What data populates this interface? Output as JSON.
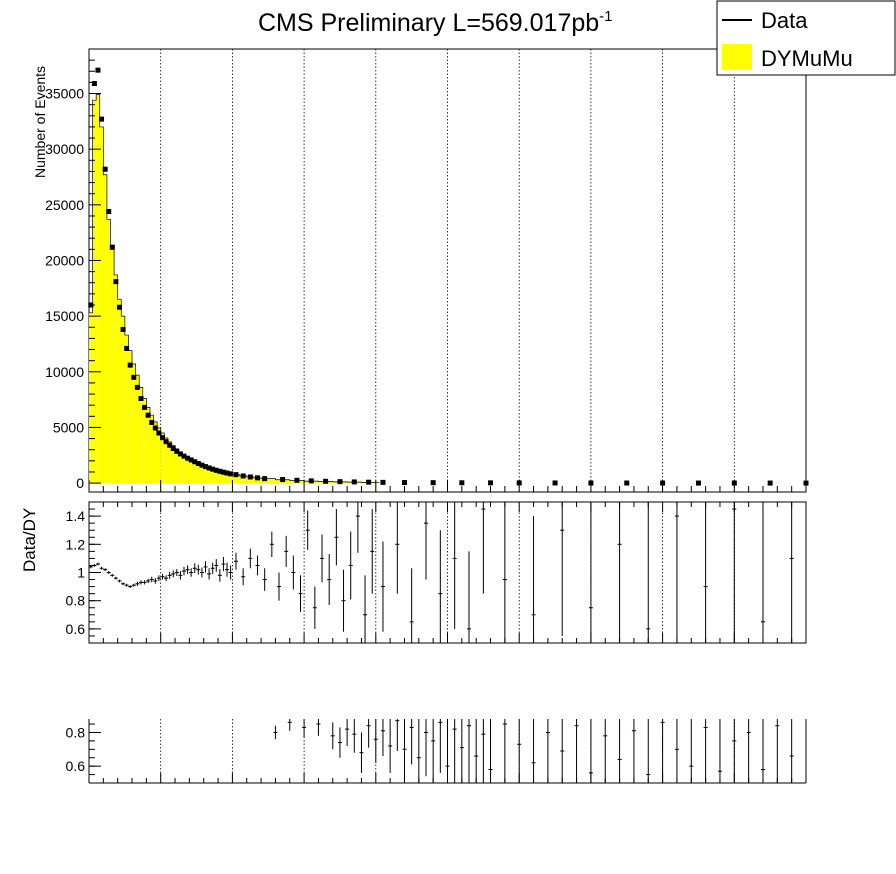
{
  "chart_data": [
    {
      "type": "bar",
      "panel": "main",
      "title": "CMS Preliminary L=569.017pb",
      "title_superscript": "-1",
      "ylabel": "Number of Events",
      "xlabel": "",
      "ylim": [
        -800,
        39000
      ],
      "xlim": [
        0,
        500
      ],
      "yticks": [
        0,
        5000,
        10000,
        15000,
        20000,
        25000,
        30000,
        35000
      ],
      "ytick_labels": [
        "0",
        "5000",
        "10000",
        "15000",
        "20000",
        "25000",
        "30000",
        "35000"
      ],
      "grid_x": true,
      "grid_y": false,
      "legend": {
        "position": "top-right",
        "entries": [
          {
            "label": "Data",
            "style": "line",
            "color": "#000000"
          },
          {
            "label": "DYMuMu",
            "style": "fill",
            "color": "#ffff00"
          }
        ]
      },
      "series": [
        {
          "name": "DYMuMu",
          "kind": "histogram",
          "color": "#ffff00",
          "bin_width": 2.5,
          "x": [
            0,
            2.5,
            5,
            7.5,
            10,
            12.5,
            15,
            17.5,
            20,
            22.5,
            25,
            27.5,
            30,
            32.5,
            35,
            37.5,
            40,
            42.5,
            45,
            47.5,
            50,
            52.5,
            55,
            57.5,
            60,
            62.5,
            65,
            67.5,
            70,
            72.5,
            75,
            77.5,
            80,
            82.5,
            85,
            87.5,
            90,
            92.5,
            95,
            97.5,
            100,
            105,
            110,
            115,
            120,
            130,
            140,
            150,
            160,
            170,
            180,
            190,
            200
          ],
          "values": [
            15300,
            34400,
            34900,
            32000,
            27700,
            23700,
            21000,
            18700,
            16500,
            15000,
            13300,
            11900,
            10700,
            9700,
            8600,
            7600,
            6800,
            6100,
            5500,
            4950,
            4500,
            4050,
            3700,
            3380,
            3080,
            2810,
            2570,
            2350,
            2150,
            1970,
            1800,
            1650,
            1510,
            1390,
            1280,
            1180,
            1090,
            1000,
            920,
            850,
            780,
            650,
            560,
            470,
            400,
            300,
            230,
            180,
            140,
            110,
            85,
            65,
            50
          ]
        },
        {
          "name": "Data",
          "kind": "points",
          "color": "#000000",
          "x": [
            1.25,
            3.75,
            6.25,
            8.75,
            11.25,
            13.75,
            16.25,
            18.75,
            21.25,
            23.75,
            26.25,
            28.75,
            31.25,
            33.75,
            36.25,
            38.75,
            41.25,
            43.75,
            46.25,
            48.75,
            51.25,
            53.75,
            56.25,
            58.75,
            61.25,
            63.75,
            66.25,
            68.75,
            71.25,
            73.75,
            76.25,
            78.75,
            81.25,
            83.75,
            86.25,
            88.75,
            91.25,
            93.75,
            96.25,
            98.75,
            102.5,
            107.5,
            112.5,
            117.5,
            122.5,
            135,
            145,
            155,
            165,
            175,
            185,
            195,
            205,
            220,
            240,
            260,
            280,
            300,
            325,
            350,
            375,
            400,
            425,
            450,
            475,
            500
          ],
          "values": [
            16000,
            35900,
            37100,
            32700,
            28200,
            24400,
            21200,
            18100,
            15800,
            13800,
            12100,
            10600,
            9500,
            8600,
            7600,
            6800,
            6100,
            5450,
            4950,
            4500,
            4080,
            3720,
            3400,
            3100,
            2850,
            2620,
            2420,
            2240,
            2080,
            1920,
            1760,
            1610,
            1480,
            1360,
            1250,
            1150,
            1060,
            980,
            900,
            830,
            760,
            640,
            550,
            470,
            400,
            320,
            250,
            200,
            160,
            130,
            105,
            80,
            65,
            50,
            40,
            30,
            22,
            18,
            12,
            9,
            7,
            5,
            4,
            3,
            2,
            2
          ]
        }
      ]
    },
    {
      "type": "scatter",
      "panel": "ratio",
      "ylabel": "Data/DY",
      "xlabel": "",
      "xlim": [
        0,
        500
      ],
      "ylim": [
        0.5,
        1.5
      ],
      "yticks": [
        0.6,
        0.8,
        1,
        1.2,
        1.4
      ],
      "ytick_labels": [
        "0.6",
        "0.8",
        "1",
        "1.2",
        "1.4"
      ],
      "grid_x": true,
      "reference_line": 1,
      "series": [
        {
          "name": "",
          "x": [
            1.25,
            3.75,
            6.25,
            8.75,
            11.25,
            13.75,
            16.25,
            18.75,
            21.25,
            23.75,
            26.25,
            28.75,
            31.25,
            33.75,
            36.25,
            38.75,
            41.25,
            43.75,
            46.25,
            48.75,
            51.25,
            53.75,
            56.25,
            58.75,
            61.25,
            63.75,
            66.25,
            68.75,
            71.25,
            73.75,
            76.25,
            78.75,
            81.25,
            83.75,
            86.25,
            88.75,
            91.25,
            93.75,
            96.25,
            98.75,
            102.5,
            107.5,
            112.5,
            117.5,
            122.5,
            127.5,
            132.5,
            137.5,
            142.5,
            147.5,
            152.5,
            157.5,
            162.5,
            167.5,
            172.5,
            177.5,
            182.5,
            187.5,
            192.5,
            197.5,
            205,
            215,
            225,
            235,
            245,
            255,
            265,
            275,
            290,
            310,
            330,
            350,
            370,
            390,
            410,
            430,
            450,
            470,
            490
          ],
          "values": [
            1.04,
            1.05,
            1.06,
            1.03,
            1.02,
            1.0,
            0.98,
            0.96,
            0.94,
            0.92,
            0.91,
            0.9,
            0.91,
            0.92,
            0.93,
            0.93,
            0.94,
            0.95,
            0.94,
            0.96,
            0.97,
            0.96,
            0.98,
            0.99,
            1.0,
            0.98,
            1.01,
            1.02,
            1.0,
            1.03,
            1.02,
            1.0,
            1.04,
            0.99,
            1.03,
            1.05,
            0.98,
            1.06,
            1.02,
            1.0,
            1.08,
            0.97,
            1.1,
            1.05,
            0.95,
            1.2,
            0.9,
            1.15,
            1.0,
            0.85,
            1.3,
            0.75,
            1.1,
            0.95,
            1.25,
            0.8,
            1.05,
            1.4,
            0.7,
            1.15,
            0.9,
            1.2,
            0.65,
            1.35,
            0.85,
            1.1,
            0.6,
            1.45,
            0.95,
            0.7,
            1.3,
            0.75,
            1.2,
            0.6,
            1.4,
            0.9,
            1.45,
            0.65,
            1.1
          ],
          "errors": [
            0.01,
            0.01,
            0.01,
            0.01,
            0.01,
            0.01,
            0.01,
            0.01,
            0.01,
            0.01,
            0.01,
            0.01,
            0.01,
            0.015,
            0.015,
            0.015,
            0.015,
            0.02,
            0.02,
            0.02,
            0.02,
            0.02,
            0.025,
            0.025,
            0.025,
            0.03,
            0.03,
            0.03,
            0.03,
            0.035,
            0.035,
            0.035,
            0.04,
            0.04,
            0.04,
            0.045,
            0.045,
            0.05,
            0.05,
            0.05,
            0.06,
            0.06,
            0.07,
            0.07,
            0.08,
            0.09,
            0.1,
            0.11,
            0.12,
            0.13,
            0.14,
            0.15,
            0.17,
            0.18,
            0.2,
            0.22,
            0.24,
            0.26,
            0.28,
            0.3,
            0.32,
            0.35,
            0.38,
            0.4,
            0.45,
            0.5,
            0.55,
            0.6,
            0.65,
            0.7,
            0.75,
            0.8,
            0.85,
            0.9,
            0.95,
            1.0,
            1.0,
            1.0,
            1.0
          ]
        }
      ]
    },
    {
      "type": "scatter",
      "panel": "lower",
      "ylabel": "",
      "xlabel": "",
      "xlim": [
        0,
        500
      ],
      "ylim": [
        0.5,
        0.88
      ],
      "yticks": [
        0.6,
        0.8
      ],
      "ytick_labels": [
        "0.6",
        "0.8"
      ],
      "grid_x": true,
      "series": [
        {
          "name": "",
          "x": [
            130,
            140,
            150,
            160,
            170,
            175,
            180,
            185,
            190,
            195,
            200,
            205,
            210,
            215,
            220,
            225,
            230,
            235,
            240,
            245,
            250,
            255,
            260,
            265,
            270,
            275,
            280,
            290,
            300,
            310,
            320,
            330,
            340,
            350,
            360,
            370,
            380,
            390,
            400,
            410,
            420,
            430,
            440,
            450,
            460,
            470,
            480,
            490
          ],
          "values": [
            0.8,
            0.86,
            0.83,
            0.85,
            0.78,
            0.74,
            0.82,
            0.79,
            0.68,
            0.84,
            0.76,
            0.81,
            0.72,
            0.87,
            0.7,
            0.83,
            0.65,
            0.8,
            0.75,
            0.86,
            0.6,
            0.82,
            0.71,
            0.84,
            0.66,
            0.79,
            0.58,
            0.85,
            0.73,
            0.62,
            0.8,
            0.69,
            0.84,
            0.56,
            0.78,
            0.64,
            0.81,
            0.55,
            0.86,
            0.7,
            0.6,
            0.83,
            0.57,
            0.75,
            0.8,
            0.58,
            0.84,
            0.66
          ],
          "errors": [
            0.04,
            0.05,
            0.06,
            0.07,
            0.08,
            0.09,
            0.1,
            0.11,
            0.12,
            0.13,
            0.14,
            0.15,
            0.16,
            0.18,
            0.2,
            0.22,
            0.24,
            0.26,
            0.28,
            0.3,
            0.32,
            0.35,
            0.38,
            0.4,
            0.42,
            0.45,
            0.5,
            0.55,
            0.6,
            0.65,
            0.7,
            0.75,
            0.8,
            0.85,
            0.9,
            0.95,
            1.0,
            1.0,
            1.0,
            1.0,
            1.0,
            1.0,
            1.0,
            1.0,
            1.0,
            1.0,
            1.0,
            1.0
          ]
        }
      ]
    }
  ]
}
